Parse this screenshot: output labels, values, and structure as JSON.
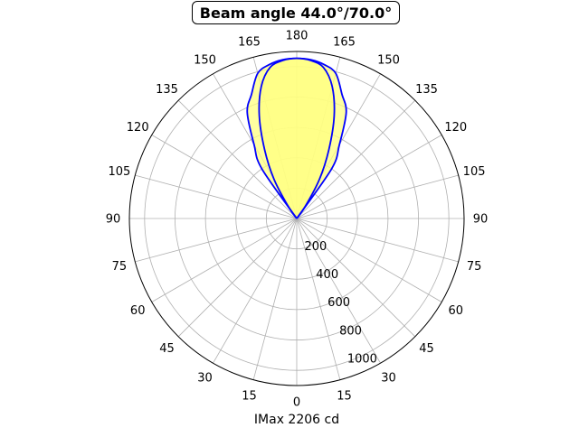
{
  "chart_data": {
    "type": "polar-line",
    "title": "Beam angle 44.0°/70.0°",
    "xlabel": "IMax 2206 cd",
    "angle_tick_labels": [
      "0",
      "15",
      "30",
      "45",
      "60",
      "75",
      "90",
      "105",
      "120",
      "135",
      "150",
      "165",
      "180",
      "165",
      "150",
      "135",
      "120",
      "105",
      "90",
      "75",
      "60",
      "45",
      "30",
      "15"
    ],
    "radial_tick_labels": [
      "200",
      "400",
      "600",
      "800",
      "1000"
    ],
    "radial_ticks": [
      200,
      400,
      600,
      800,
      1000
    ],
    "rlim": [
      0,
      1100
    ],
    "grid": true,
    "fill_color": "#ffff80",
    "line_color": "#0000ff",
    "series": [
      {
        "angles_deg": [
          0,
          5,
          10,
          15,
          20,
          25,
          30,
          35,
          40
        ],
        "values": [
          1055,
          1050,
          1030,
          990,
          870,
          770,
          560,
          400,
          0
        ]
      },
      {
        "angles_deg": [
          0,
          5,
          10,
          15,
          20,
          25,
          30,
          35,
          40
        ],
        "values": [
          1055,
          1045,
          1010,
          900,
          720,
          500,
          300,
          100,
          0
        ]
      }
    ]
  }
}
